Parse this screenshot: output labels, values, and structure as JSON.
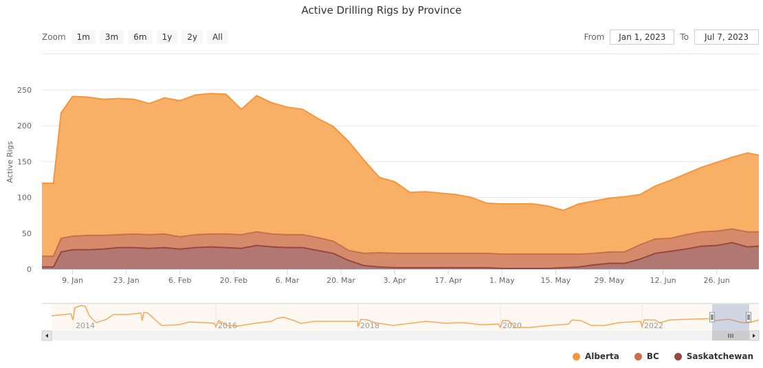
{
  "title": "Active Drilling Rigs by Province",
  "zoom": {
    "label": "Zoom",
    "buttons": [
      "1m",
      "3m",
      "6m",
      "1y",
      "2y",
      "All"
    ]
  },
  "range": {
    "from_label": "From",
    "from_value": "Jan 1, 2023",
    "to_label": "To",
    "to_value": "Jul 7, 2023"
  },
  "legend": [
    {
      "name": "Alberta",
      "color": "#f7953a"
    },
    {
      "name": "BC",
      "color": "#c8704a"
    },
    {
      "name": "Saskatchewan",
      "color": "#99473f"
    }
  ],
  "navigator": {
    "year_labels": [
      "2014",
      "2016",
      "2018",
      "2020",
      "2022"
    ]
  },
  "chart_data": {
    "type": "area",
    "stacked": true,
    "title": "Active Drilling Rigs by Province",
    "xlabel": "",
    "ylabel": "Active Rigs",
    "ylim": [
      0,
      250
    ],
    "yticks": [
      0,
      50,
      100,
      150,
      200,
      250
    ],
    "xticks": [
      "9. Jan",
      "23. Jan",
      "6. Feb",
      "20. Feb",
      "6. Mar",
      "20. Mar",
      "3. Apr",
      "17. Apr",
      "1. May",
      "15. May",
      "29. May",
      "12. Jun",
      "26. Jun"
    ],
    "x_days": [
      0,
      3,
      5,
      8,
      12,
      16,
      20,
      24,
      28,
      32,
      36,
      40,
      44,
      48,
      52,
      56,
      60,
      64,
      68,
      72,
      76,
      80,
      84,
      88,
      92,
      96,
      100,
      104,
      108,
      112,
      116,
      120,
      124,
      128,
      132,
      136,
      140,
      144,
      148,
      152,
      156,
      160,
      164,
      168,
      172,
      176,
      180,
      184,
      187
    ],
    "series": [
      {
        "name": "Saskatchewan",
        "values": [
          3,
          3,
          24,
          27,
          27,
          28,
          30,
          30,
          29,
          30,
          28,
          30,
          31,
          30,
          29,
          33,
          31,
          30,
          30,
          26,
          22,
          12,
          5,
          3,
          2,
          2,
          2,
          2,
          2,
          2,
          2,
          1,
          1,
          1,
          1,
          2,
          3,
          6,
          8,
          8,
          14,
          22,
          25,
          28,
          32,
          33,
          37,
          31,
          32
        ]
      },
      {
        "name": "BC",
        "values": [
          15,
          15,
          19,
          19,
          20,
          19,
          18,
          19,
          19,
          19,
          17,
          18,
          18,
          19,
          19,
          19,
          18,
          18,
          18,
          18,
          17,
          14,
          17,
          20,
          20,
          20,
          20,
          20,
          20,
          20,
          20,
          20,
          20,
          20,
          20,
          19,
          18,
          16,
          16,
          16,
          20,
          20,
          18,
          20,
          20,
          20,
          19,
          21,
          20
        ]
      },
      {
        "name": "Alberta",
        "values": [
          102,
          102,
          175,
          195,
          193,
          190,
          190,
          188,
          183,
          190,
          190,
          195,
          196,
          195,
          175,
          190,
          183,
          178,
          175,
          166,
          160,
          152,
          130,
          105,
          100,
          85,
          86,
          84,
          82,
          78,
          70,
          70,
          70,
          70,
          67,
          61,
          70,
          73,
          75,
          77,
          70,
          74,
          81,
          85,
          90,
          96,
          100,
          110,
          107
        ]
      }
    ]
  }
}
